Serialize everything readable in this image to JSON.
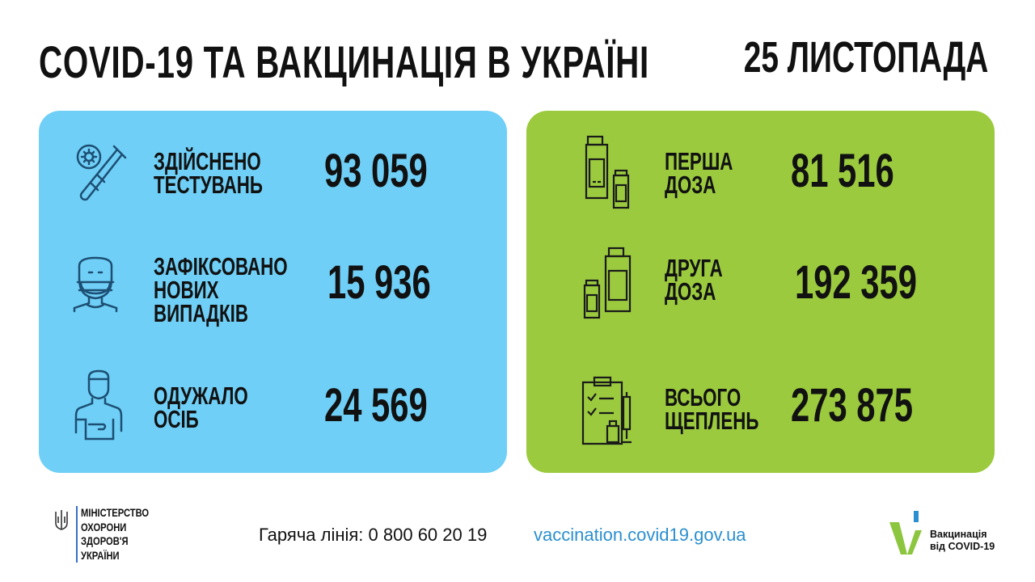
{
  "header": {
    "title": "COVID-19 ТА ВАКЦИНАЦІЯ В УКРАЇНІ",
    "date": "25 ЛИСТОПАДА"
  },
  "colors": {
    "blue_panel": "#6fcff6",
    "green_panel": "#9bca3e",
    "icon_stroke_blue": "#1d4e73",
    "link": "#2b8fcf"
  },
  "covid": [
    {
      "icon": "test-tube-virus-icon",
      "label": [
        "ЗДІЙСНЕНО",
        "ТЕСТУВАНЬ"
      ],
      "value": "93 059"
    },
    {
      "icon": "masked-person-icon",
      "label": [
        "ЗАФІКСОВАНО",
        "НОВИХ",
        "ВИПАДКІВ"
      ],
      "value": "15 936"
    },
    {
      "icon": "recovered-person-icon",
      "label": [
        "ОДУЖАЛО",
        "ОСІБ"
      ],
      "value": "24 569"
    }
  ],
  "vaccination": [
    {
      "icon": "vaccine-vials-icon",
      "label": [
        "ПЕРША",
        "ДОЗА"
      ],
      "value": "81 516"
    },
    {
      "icon": "vaccine-vials-icon",
      "label": [
        "ДРУГА",
        "ДОЗА"
      ],
      "value": "192 359"
    },
    {
      "icon": "clipboard-syringe-icon",
      "label": [
        "ВСЬОГО",
        "ЩЕПЛЕНЬ"
      ],
      "value": "273 875"
    }
  ],
  "footer": {
    "ministry": [
      "МІНІСТЕРСТВО",
      "ОХОРОНИ",
      "ЗДОРОВ'Я",
      "УКРАЇНИ"
    ],
    "hotline": "Гаряча лінія: 0 800 60 20 19",
    "website": "vaccination.covid19.gov.ua",
    "campaign": [
      "Вакцинація",
      "від COVID-19"
    ]
  }
}
